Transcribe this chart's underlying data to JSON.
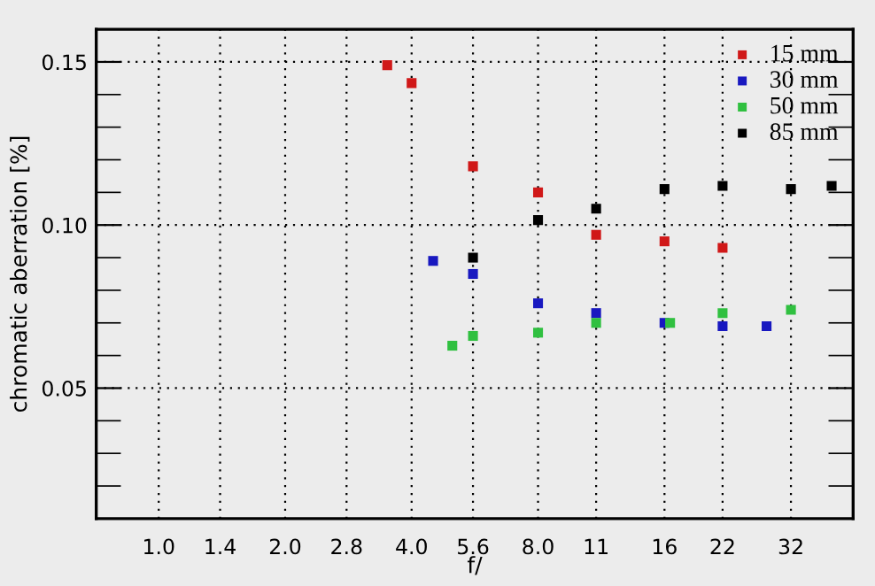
{
  "chart_data": {
    "type": "scatter",
    "xlabel": "f/",
    "ylabel": "chromatic aberration [%]",
    "log": "x",
    "xlim": [
      0.71,
      45
    ],
    "ylim": [
      0.01,
      0.16
    ],
    "xticks": [
      {
        "value": 1,
        "label": "1.0"
      },
      {
        "value": 1.4,
        "label": "1.4"
      },
      {
        "value": 2,
        "label": "2.0"
      },
      2.8,
      {
        "value": 4,
        "label": "4.0"
      },
      5.6,
      {
        "value": 8,
        "label": "8.0"
      },
      11,
      16,
      22,
      32
    ],
    "yticks": [
      {
        "value": 0.02,
        "label": null
      },
      {
        "value": 0.03,
        "label": null
      },
      {
        "value": 0.04,
        "label": null
      },
      0.05,
      {
        "value": 0.06,
        "label": null
      },
      {
        "value": 0.07,
        "label": null
      },
      {
        "value": 0.08,
        "label": null
      },
      {
        "value": 0.09,
        "label": null
      },
      {
        "value": 0.1,
        "label": "0.10"
      },
      {
        "value": 0.11,
        "label": null
      },
      {
        "value": 0.12,
        "label": null
      },
      {
        "value": 0.13,
        "label": null
      },
      {
        "value": 0.14,
        "label": null
      },
      0.15
    ],
    "grid": true,
    "legend": "top right",
    "marker": "square",
    "series": [
      {
        "name": "15 mm",
        "color": "#d01818",
        "x": [
          3.5,
          4,
          5.6,
          8,
          11,
          16,
          22
        ],
        "values": [
          0.149,
          0.1435,
          0.118,
          0.11,
          0.097,
          0.095,
          0.093
        ]
      },
      {
        "name": "30 mm",
        "color": "#1818c0",
        "x": [
          4.5,
          5.6,
          8,
          11,
          16,
          22,
          28
        ],
        "values": [
          0.089,
          0.085,
          0.076,
          0.073,
          0.07,
          0.069,
          0.069
        ]
      },
      {
        "name": "50 mm",
        "color": "#30c040",
        "x": [
          5,
          5.6,
          8,
          11,
          16.5,
          22,
          32
        ],
        "values": [
          0.063,
          0.066,
          0.067,
          0.07,
          0.07,
          0.073,
          0.074
        ]
      },
      {
        "name": "85 mm",
        "color": "#000000",
        "x": [
          5.6,
          8,
          11,
          16,
          22,
          32,
          40
        ],
        "values": [
          0.09,
          0.1015,
          0.105,
          0.111,
          0.112,
          0.111,
          0.112
        ]
      }
    ]
  }
}
